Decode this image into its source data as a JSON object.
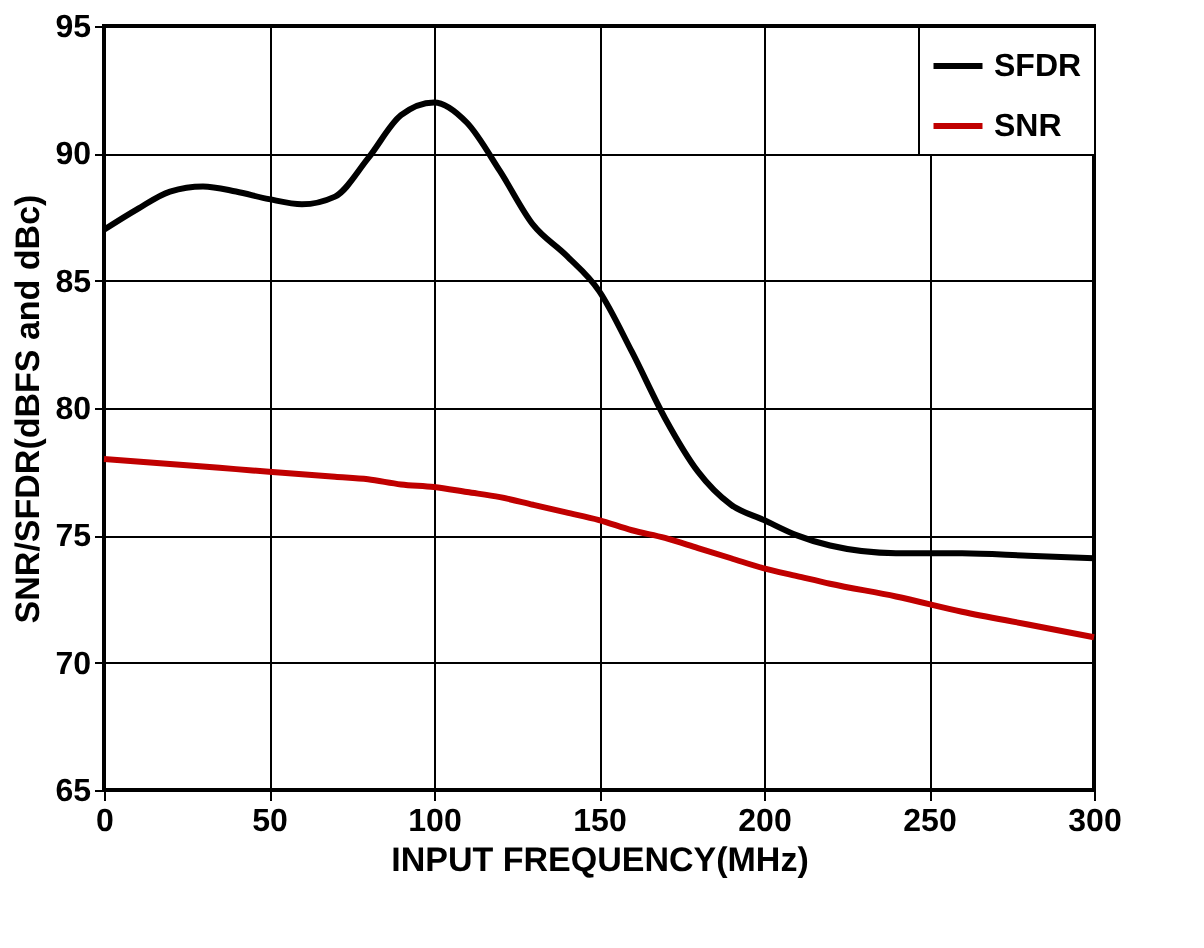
{
  "chart_data": {
    "type": "line",
    "xlabel": "INPUT FREQUENCY(MHz)",
    "ylabel": "SNR/SFDR(dBFS and dBc)",
    "x": [
      0,
      10,
      20,
      30,
      40,
      50,
      60,
      70,
      80,
      90,
      100,
      110,
      120,
      130,
      140,
      150,
      160,
      170,
      180,
      190,
      200,
      210,
      220,
      240,
      260,
      280,
      300
    ],
    "series": [
      {
        "name": "SFDR",
        "color": "#000000",
        "values": [
          87,
          87.8,
          88.5,
          88.7,
          88.5,
          88.2,
          88,
          88.3,
          89.8,
          91.5,
          92,
          91.2,
          89.3,
          87.2,
          86,
          84.6,
          82.2,
          79.6,
          77.5,
          76.2,
          75.6,
          75,
          74.6,
          74.3,
          74.3,
          74.2,
          74.1
        ]
      },
      {
        "name": "SNR",
        "color": "#c00000",
        "values": [
          78,
          77.9,
          77.8,
          77.7,
          77.6,
          77.5,
          77.4,
          77.3,
          77.2,
          77,
          76.9,
          76.7,
          76.5,
          76.2,
          75.9,
          75.6,
          75.2,
          74.9,
          74.5,
          74.1,
          73.7,
          73.4,
          73.1,
          72.6,
          72,
          71.5,
          71
        ]
      }
    ],
    "xlim": [
      0,
      300
    ],
    "xticks": [
      0,
      50,
      100,
      150,
      200,
      250,
      300
    ],
    "ylim": [
      65,
      95
    ],
    "yticks": [
      65,
      70,
      75,
      80,
      85,
      90,
      95
    ],
    "grid": true,
    "legend": "top right",
    "marker": "none",
    "line_style": "solid"
  }
}
